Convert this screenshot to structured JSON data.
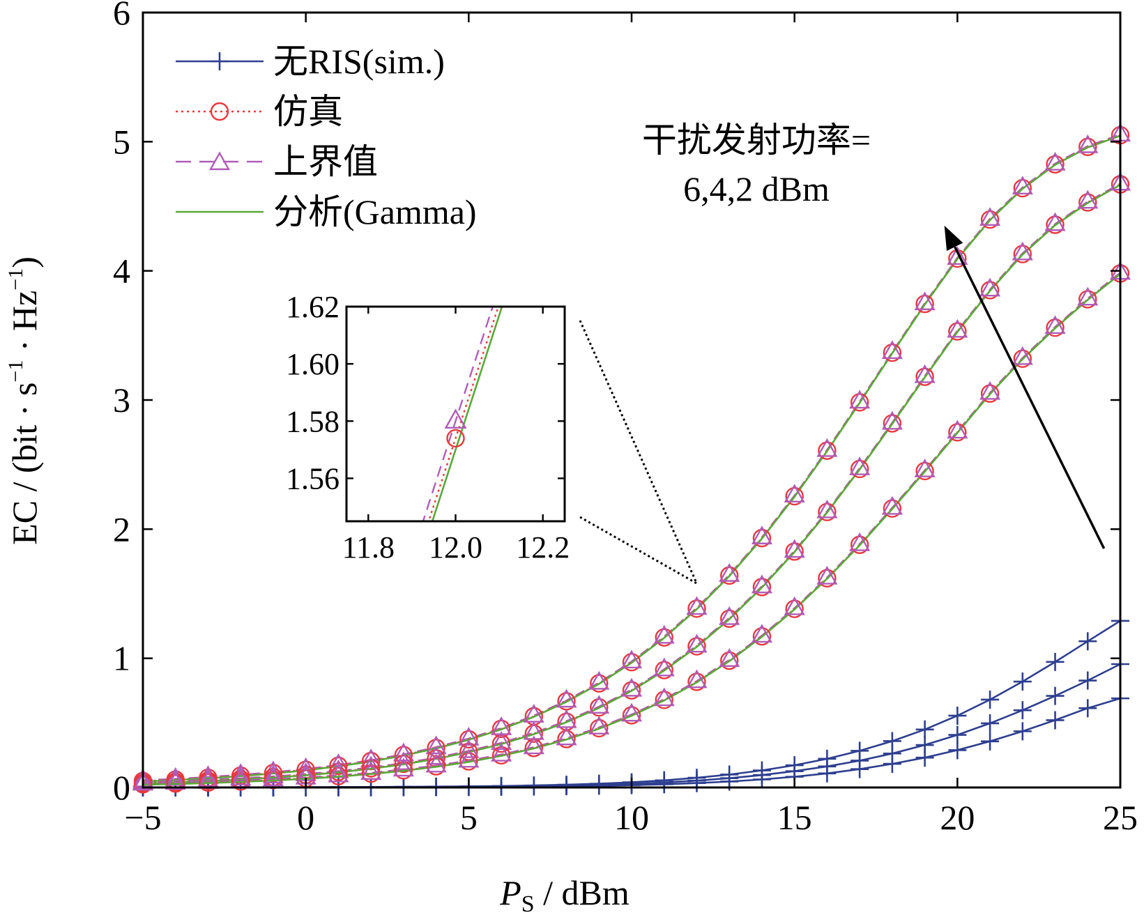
{
  "chart_data": {
    "type": "line",
    "xlabel": {
      "main": "P",
      "sub": "S",
      "rest": " / dBm"
    },
    "ylabel": {
      "a": "EC / (bit · s",
      "sup1": "−1",
      "b": " · Hz",
      "sup2": "−1",
      "c": ")"
    },
    "xlim": [
      -5,
      25
    ],
    "ylim": [
      0,
      6
    ],
    "x_ticks": [
      -5,
      0,
      5,
      10,
      15,
      20,
      25
    ],
    "x_tick_labels": [
      "−5",
      "0",
      "5",
      "10",
      "15",
      "20",
      "25"
    ],
    "y_ticks": [
      0,
      1,
      2,
      3,
      4,
      5,
      6
    ],
    "y_tick_labels": [
      "0",
      "1",
      "2",
      "3",
      "4",
      "5",
      "6"
    ],
    "grid": false,
    "legend": {
      "position": "top-left",
      "entries": [
        {
          "label": "无RIS(sim.)",
          "color": "#2e3f8f",
          "marker": "plus",
          "dash": "solid"
        },
        {
          "label": "仿真",
          "color": "#e8383d",
          "marker": "circle",
          "dash": "dotted"
        },
        {
          "label": "上界值",
          "color": "#b05cb8",
          "marker": "triangle",
          "dash": "dashed"
        },
        {
          "label": "分析(Gamma)",
          "color": "#5aa83a",
          "marker": "none",
          "dash": "solid"
        }
      ]
    },
    "x": [
      -5,
      -4,
      -3,
      -2,
      -1,
      0,
      1,
      2,
      3,
      4,
      5,
      6,
      7,
      8,
      9,
      10,
      11,
      12,
      13,
      14,
      15,
      16,
      17,
      18,
      19,
      20,
      21,
      22,
      23,
      24,
      25
    ],
    "series": [
      {
        "group": "with-RIS",
        "jam_power": "2 dBm",
        "values": [
          0.05,
          0.061,
          0.075,
          0.092,
          0.112,
          0.137,
          0.168,
          0.205,
          0.251,
          0.306,
          0.373,
          0.454,
          0.551,
          0.667,
          0.806,
          0.97,
          1.162,
          1.385,
          1.641,
          1.931,
          2.255,
          2.608,
          2.982,
          3.366,
          3.744,
          4.095,
          4.397,
          4.64,
          4.825,
          4.96,
          5.05
        ]
      },
      {
        "group": "with-RIS",
        "jam_power": "4 dBm",
        "values": [
          0.035,
          0.043,
          0.053,
          0.065,
          0.08,
          0.098,
          0.121,
          0.149,
          0.183,
          0.225,
          0.277,
          0.34,
          0.417,
          0.509,
          0.62,
          0.752,
          0.909,
          1.093,
          1.307,
          1.552,
          1.827,
          2.133,
          2.466,
          2.819,
          3.18,
          3.531,
          3.85,
          4.13,
          4.357,
          4.53,
          4.67
        ]
      },
      {
        "group": "with-RIS",
        "jam_power": "6 dBm",
        "values": [
          0.025,
          0.031,
          0.038,
          0.047,
          0.058,
          0.071,
          0.088,
          0.108,
          0.133,
          0.164,
          0.202,
          0.249,
          0.306,
          0.375,
          0.459,
          0.559,
          0.678,
          0.818,
          0.982,
          1.17,
          1.383,
          1.62,
          1.879,
          2.16,
          2.45,
          2.75,
          3.05,
          3.32,
          3.56,
          3.78,
          3.98
        ]
      },
      {
        "group": "no-RIS",
        "jam_power": "2 dBm",
        "values": [
          0.0005,
          0.0007,
          0.0009,
          0.0012,
          0.0016,
          0.002,
          0.0027,
          0.0036,
          0.0048,
          0.0064,
          0.0086,
          0.0115,
          0.0155,
          0.021,
          0.029,
          0.04,
          0.055,
          0.075,
          0.1,
          0.132,
          0.172,
          0.222,
          0.284,
          0.359,
          0.449,
          0.556,
          0.68,
          0.82,
          0.972,
          1.132,
          1.29
        ]
      },
      {
        "group": "no-RIS",
        "jam_power": "4 dBm",
        "values": [
          0.0003,
          0.0004,
          0.0006,
          0.0008,
          0.001,
          0.0014,
          0.0019,
          0.0025,
          0.0034,
          0.0045,
          0.006,
          0.0081,
          0.011,
          0.015,
          0.02,
          0.028,
          0.039,
          0.053,
          0.072,
          0.096,
          0.126,
          0.163,
          0.208,
          0.263,
          0.329,
          0.407,
          0.497,
          0.598,
          0.709,
          0.828,
          0.955
        ]
      },
      {
        "group": "no-RIS",
        "jam_power": "6 dBm",
        "values": [
          0.0002,
          0.0003,
          0.0004,
          0.0005,
          0.0007,
          0.0009,
          0.0012,
          0.0016,
          0.0022,
          0.003,
          0.004,
          0.0054,
          0.0073,
          0.0099,
          0.0135,
          0.0185,
          0.025,
          0.034,
          0.046,
          0.062,
          0.083,
          0.109,
          0.142,
          0.183,
          0.231,
          0.289,
          0.357,
          0.435,
          0.521,
          0.614,
          0.69
        ]
      }
    ],
    "upper_bound_offset": 0.006,
    "gamma_offset": -0.004,
    "annotation": {
      "line1": "干扰发射功率=",
      "line2": "6,4,2 dBm",
      "arrow": {
        "from": [
          24.5,
          1.85
        ],
        "to": [
          19.6,
          4.35
        ]
      }
    },
    "inset": {
      "xlim": [
        11.75,
        12.25
      ],
      "ylim": [
        1.545,
        1.62
      ],
      "x_ticks": [
        11.8,
        12.0,
        12.2
      ],
      "x_tick_labels": [
        "11.8",
        "12.0",
        "12.2"
      ],
      "y_ticks": [
        1.56,
        1.58,
        1.6,
        1.62
      ],
      "y_tick_labels": [
        "1.56",
        "1.58",
        "1.60",
        "1.62"
      ],
      "sim_point": {
        "x": 12.0,
        "y": 1.574
      },
      "upper_point": {
        "x": 12.0,
        "y": 1.58
      },
      "slope": 0.47,
      "zoom_target": {
        "x": 12.0,
        "y": 1.58
      }
    },
    "colors": {
      "no_ris": "#2e3f8f",
      "sim": "#e8383d",
      "upper": "#b05cb8",
      "gamma": "#5aa83a",
      "axis": "#000000"
    }
  }
}
